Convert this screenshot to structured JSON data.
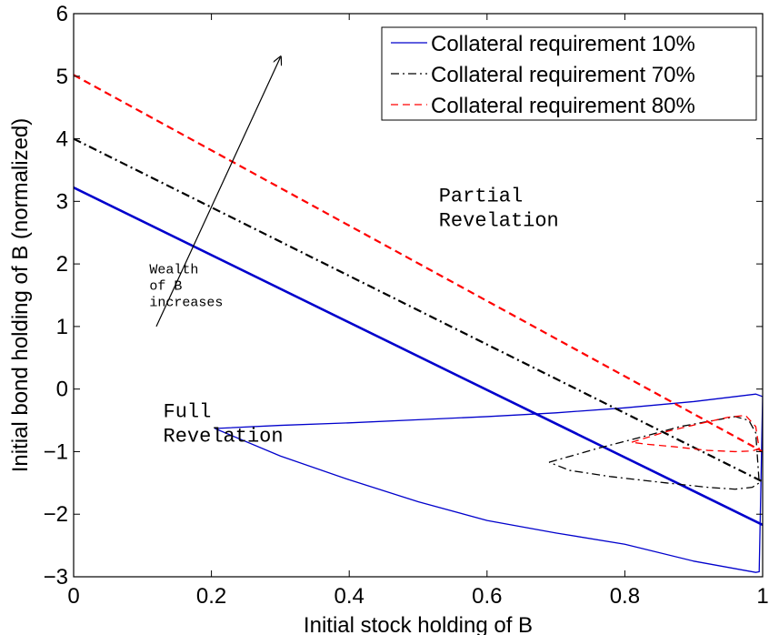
{
  "chart_data": {
    "type": "line",
    "xlabel": "Initial stock holding of B",
    "ylabel": "Initial bond holding of B (normalized)",
    "xlim": [
      0,
      1
    ],
    "ylim": [
      -3,
      6
    ],
    "xticks": [
      0,
      0.2,
      0.4,
      0.6,
      0.8,
      1
    ],
    "xtick_labels": [
      "0",
      "0.2",
      "0.4",
      "0.6",
      "0.8",
      "1"
    ],
    "yticks": [
      -3,
      -2,
      -1,
      0,
      1,
      2,
      3,
      4,
      5,
      6
    ],
    "ytick_labels": [
      "−3",
      "−2",
      "−1",
      "0",
      "1",
      "2",
      "3",
      "4",
      "5",
      "6"
    ],
    "grid": false,
    "legend_position": "top-right",
    "series": [
      {
        "name": "Collateral requirement 10%",
        "color": "#0000cc",
        "dash": "solid",
        "threshold_line": {
          "x": [
            0,
            1
          ],
          "y": [
            3.22,
            -2.17
          ]
        },
        "region_boundary": {
          "x": [
            0.205,
            0.3,
            0.4,
            0.5,
            0.6,
            0.7,
            0.8,
            0.9,
            0.99,
            1.0,
            0.995,
            0.99,
            0.9,
            0.8,
            0.7,
            0.6,
            0.5,
            0.4,
            0.3,
            0.205
          ],
          "y": [
            -0.63,
            -0.58,
            -0.54,
            -0.49,
            -0.44,
            -0.38,
            -0.3,
            -0.2,
            -0.08,
            -0.12,
            -2.92,
            -2.93,
            -2.75,
            -2.48,
            -2.3,
            -2.1,
            -1.8,
            -1.45,
            -1.07,
            -0.63
          ]
        }
      },
      {
        "name": "Collateral requirement 70%",
        "color": "#000000",
        "dash": "dashdot",
        "threshold_line": {
          "x": [
            0,
            1
          ],
          "y": [
            4.0,
            -1.48
          ]
        },
        "region_boundary": {
          "x": [
            0.69,
            0.76,
            0.83,
            0.88,
            0.93,
            0.96,
            0.98,
            0.99,
            0.995,
            0.985,
            0.96,
            0.92,
            0.86,
            0.78,
            0.72,
            0.69
          ],
          "y": [
            -1.17,
            -0.95,
            -0.75,
            -0.6,
            -0.5,
            -0.44,
            -0.5,
            -0.7,
            -1.5,
            -1.57,
            -1.6,
            -1.57,
            -1.5,
            -1.4,
            -1.3,
            -1.17
          ]
        }
      },
      {
        "name": "Collateral requirement 80%",
        "color": "#ff0000",
        "dash": "dashed",
        "threshold_line": {
          "x": [
            0,
            1
          ],
          "y": [
            5.02,
            -1.0
          ]
        },
        "region_boundary": {
          "x": [
            0.81,
            0.86,
            0.91,
            0.95,
            0.975,
            0.99,
            0.995,
            0.985,
            0.96,
            0.92,
            0.87,
            0.83,
            0.81
          ],
          "y": [
            -0.85,
            -0.68,
            -0.55,
            -0.45,
            -0.42,
            -0.6,
            -0.95,
            -0.99,
            -1.0,
            -0.98,
            -0.92,
            -0.88,
            -0.85
          ]
        }
      }
    ],
    "annotations": [
      {
        "lines": [
          "Partial",
          "Revelation"
        ],
        "x": 0.53,
        "y": 3.0,
        "size": "large"
      },
      {
        "lines": [
          "Full",
          "Revelation"
        ],
        "x": 0.13,
        "y": -0.45,
        "size": "large"
      },
      {
        "lines": [
          "Wealth",
          "of B",
          "increases"
        ],
        "x": 0.11,
        "y": 1.85,
        "size": "small"
      }
    ],
    "arrow": {
      "from": [
        0.12,
        1.0
      ],
      "to": [
        0.3,
        5.3
      ]
    }
  }
}
